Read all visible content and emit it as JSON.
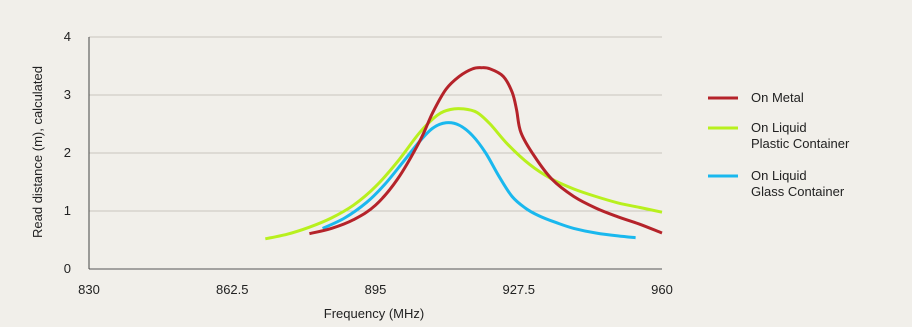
{
  "chart_data": {
    "type": "line",
    "xlabel": "Frequency (MHz)",
    "ylabel": "Read distance (m), calculated",
    "xlim": [
      830,
      960
    ],
    "ylim": [
      0,
      4
    ],
    "x_ticks": [
      830,
      862.5,
      895,
      927.5,
      960
    ],
    "x_tick_labels": [
      "830",
      "862.5",
      "895",
      "927.5",
      "960"
    ],
    "y_ticks": [
      0,
      1,
      2,
      3,
      4
    ],
    "y_tick_labels": [
      "0",
      "1",
      "2",
      "3",
      "4"
    ],
    "grid": "horizontal",
    "legend_position": "right",
    "series": [
      {
        "name": "On Metal",
        "color": "#b5232a",
        "legend_lines": [
          "On Metal"
        ],
        "x": [
          880,
          885,
          890,
          895,
          900,
          905,
          908,
          911,
          914,
          917,
          919,
          921,
          924,
          926,
          927,
          928,
          931,
          935,
          940,
          945,
          950,
          955,
          960
        ],
        "y": [
          0.61,
          0.7,
          0.85,
          1.1,
          1.55,
          2.2,
          2.7,
          3.1,
          3.32,
          3.45,
          3.47,
          3.45,
          3.32,
          3.05,
          2.75,
          2.35,
          1.95,
          1.55,
          1.25,
          1.05,
          0.9,
          0.77,
          0.62
        ]
      },
      {
        "name": "On Liquid Plastic Container",
        "color": "#b8f01e",
        "legend_lines": [
          "On Liquid",
          "Plastic Container"
        ],
        "x": [
          870,
          875,
          880,
          885,
          890,
          895,
          900,
          905,
          909,
          912,
          915,
          918,
          921,
          925,
          930,
          935,
          940,
          945,
          950,
          955,
          960
        ],
        "y": [
          0.52,
          0.6,
          0.72,
          0.88,
          1.1,
          1.42,
          1.85,
          2.35,
          2.65,
          2.75,
          2.76,
          2.7,
          2.5,
          2.15,
          1.8,
          1.55,
          1.38,
          1.25,
          1.14,
          1.06,
          0.98
        ]
      },
      {
        "name": "On Liquid Glass Container",
        "color": "#1ab8ee",
        "legend_lines": [
          "On Liquid",
          "Glass Container"
        ],
        "x": [
          883,
          888,
          893,
          897,
          901,
          905,
          908,
          911,
          914,
          917,
          920,
          923,
          926,
          929,
          932,
          936,
          940,
          945,
          950,
          954
        ],
        "y": [
          0.7,
          0.88,
          1.15,
          1.45,
          1.82,
          2.2,
          2.43,
          2.52,
          2.48,
          2.3,
          2.0,
          1.6,
          1.25,
          1.05,
          0.92,
          0.8,
          0.7,
          0.62,
          0.57,
          0.54
        ]
      }
    ]
  }
}
